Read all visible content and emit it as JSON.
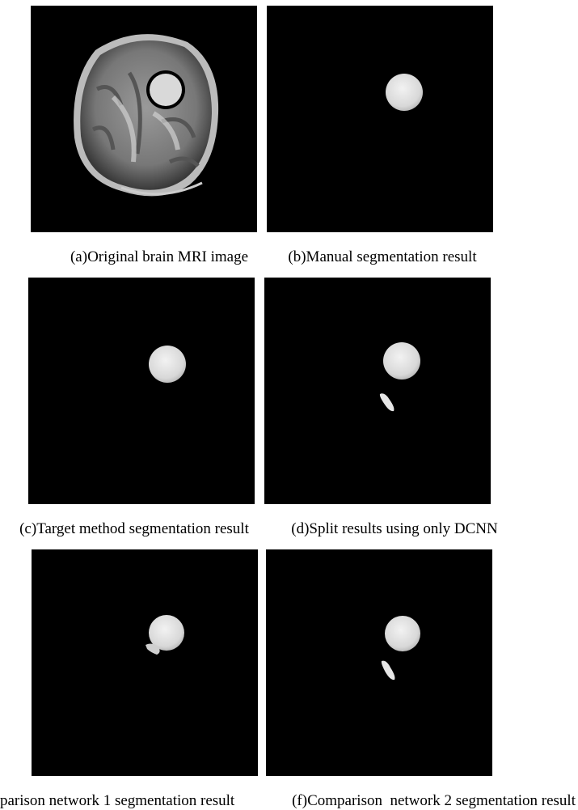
{
  "panels": [
    {
      "caption": "(a)Original brain MRI image"
    },
    {
      "caption": "(b)Manual segmentation result"
    },
    {
      "caption": "(c)Target method segmentation result"
    },
    {
      "caption": "(d)Split results using only DCNN"
    },
    {
      "caption": "parison network 1 segmentation result"
    },
    {
      "caption": "(f)Comparison  network 2 segmentation result"
    }
  ]
}
